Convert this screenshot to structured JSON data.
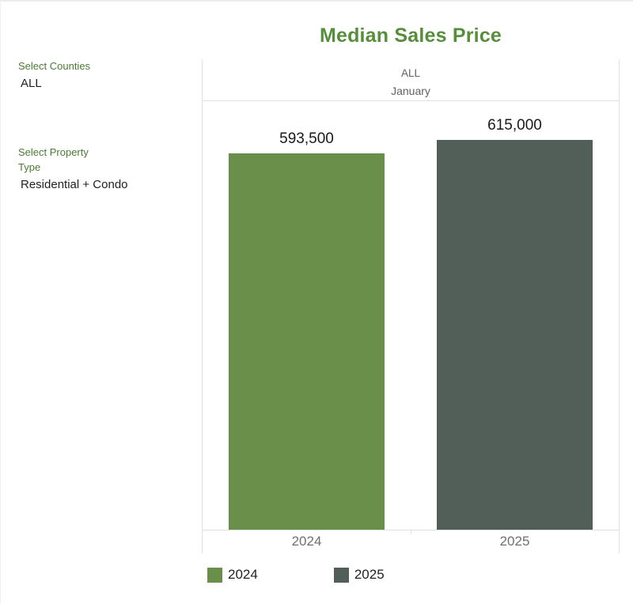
{
  "page": {
    "background": "#ffffff",
    "border_color": "#ebebeb"
  },
  "filters": [
    {
      "label": "Select Counties",
      "value": "ALL"
    },
    {
      "label": "Select Property Type",
      "value": "Residential + Condo"
    }
  ],
  "chart_data": {
    "type": "bar",
    "title": "Median Sales Price",
    "header_lines": [
      "ALL",
      "January"
    ],
    "categories": [
      "2024",
      "2025"
    ],
    "values": [
      593500,
      615000
    ],
    "value_labels": [
      "593,500",
      "615,000"
    ],
    "colors": [
      "#6a8f4a",
      "#525e58"
    ],
    "legend": [
      {
        "label": "2024",
        "color": "#6a8f4a"
      },
      {
        "label": "2025",
        "color": "#525e58"
      }
    ],
    "legend_position": "bottom-left",
    "xlabel": "",
    "ylabel": "",
    "ylim": [
      0,
      677000
    ],
    "grid": false,
    "theme": {
      "title_color": "#578e3c",
      "filter_label_color": "#4c7a34",
      "header_text_color": "#616161",
      "axis_label_color": "#6f6f6f",
      "value_label_color": "#1a1a1a",
      "line_color": "#e0e0e0"
    }
  }
}
